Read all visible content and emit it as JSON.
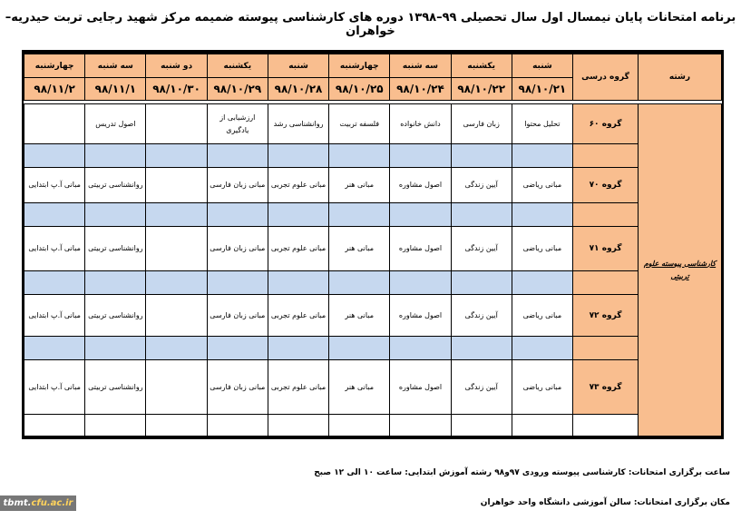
{
  "title": "برنامه امتحانات پایان نیمسال اول سال تحصیلی ۹۹–۱۳۹۸ دوره های کارشناسی پیوسته ضمیمه مرکز شهید رجایی تربت حیدریه–خواهران",
  "header": {
    "field": "رشته",
    "group": "گروه درسی",
    "days": [
      {
        "day": "شنبه",
        "date": "۹۸/۱۰/۲۱"
      },
      {
        "day": "یکشنبه",
        "date": "۹۸/۱۰/۲۲"
      },
      {
        "day": "سه شنبه",
        "date": "۹۸/۱۰/۲۴"
      },
      {
        "day": "چهارشنبه",
        "date": "۹۸/۱۰/۲۵"
      },
      {
        "day": "شنبه",
        "date": "۹۸/۱۰/۲۸"
      },
      {
        "day": "یکشنبه",
        "date": "۹۸/۱۰/۲۹"
      },
      {
        "day": "دو شنبه",
        "date": "۹۸/۱۰/۳۰"
      },
      {
        "day": "سه شنبه",
        "date": "۹۸/۱۱/۱"
      },
      {
        "day": "چهارشنبه",
        "date": "۹۸/۱۱/۲"
      }
    ]
  },
  "field_name": "کارشناسی پیوسته علوم تربیتی",
  "groups": [
    {
      "name": "گروه ۶۰",
      "courses": [
        "تحلیل محتوا",
        "زبان فارسی",
        "دانش خانواده",
        "فلسفه تربیت",
        "روانشناسی رشد",
        "ارزشیابی از یادگیری",
        "",
        "اصول تدریس",
        ""
      ]
    },
    {
      "name": "گروه ۷۰",
      "courses": [
        "مبانی ریاضی",
        "آیین زندگی",
        "اصول مشاوره",
        "مبانی هنر",
        "مبانی علوم تجربی",
        "مبانی زبان فارسی",
        "",
        "روانشناسی تربیتی",
        "مبانی آ.پ ابتدایی"
      ]
    },
    {
      "name": "گروه ۷۱",
      "courses": [
        "مبانی ریاضی",
        "آیین زندگی",
        "اصول مشاوره",
        "مبانی هنر",
        "مبانی علوم تجربی",
        "مبانی زبان فارسی",
        "",
        "روانشناسی تربیتی",
        "مبانی آ.پ ابتدایی"
      ]
    },
    {
      "name": "گروه ۷۲",
      "courses": [
        "مبانی ریاضی",
        "آیین زندگی",
        "اصول مشاوره",
        "مبانی هنر",
        "مبانی علوم تجربی",
        "مبانی زبان فارسی",
        "",
        "روانشناسی تربیتی",
        "مبانی آ.پ ابتدایی"
      ]
    },
    {
      "name": "گروه ۷۳",
      "courses": [
        "مبانی ریاضی",
        "آیین زندگی",
        "اصول مشاوره",
        "مبانی هنر",
        "مبانی علوم تجربی",
        "مبانی زبان فارسی",
        "",
        "روانشناسی تربیتی",
        "مبانی آ.پ ابتدایی"
      ]
    }
  ],
  "footer": {
    "time": "ساعت برگزاری امتحانات: کارشناسی پیوسته ورودی ۹۷و۹۸ رشته آموزش ابتدایی: ساعت ۱۰ الی ۱۲ صبح",
    "place": "مکان برگزاری امتحانات: سالن آموزشی دانشگاه واحد خواهران"
  },
  "watermark": {
    "prefix": "tbmt.",
    "suffix": "cfu.ac.ir"
  }
}
